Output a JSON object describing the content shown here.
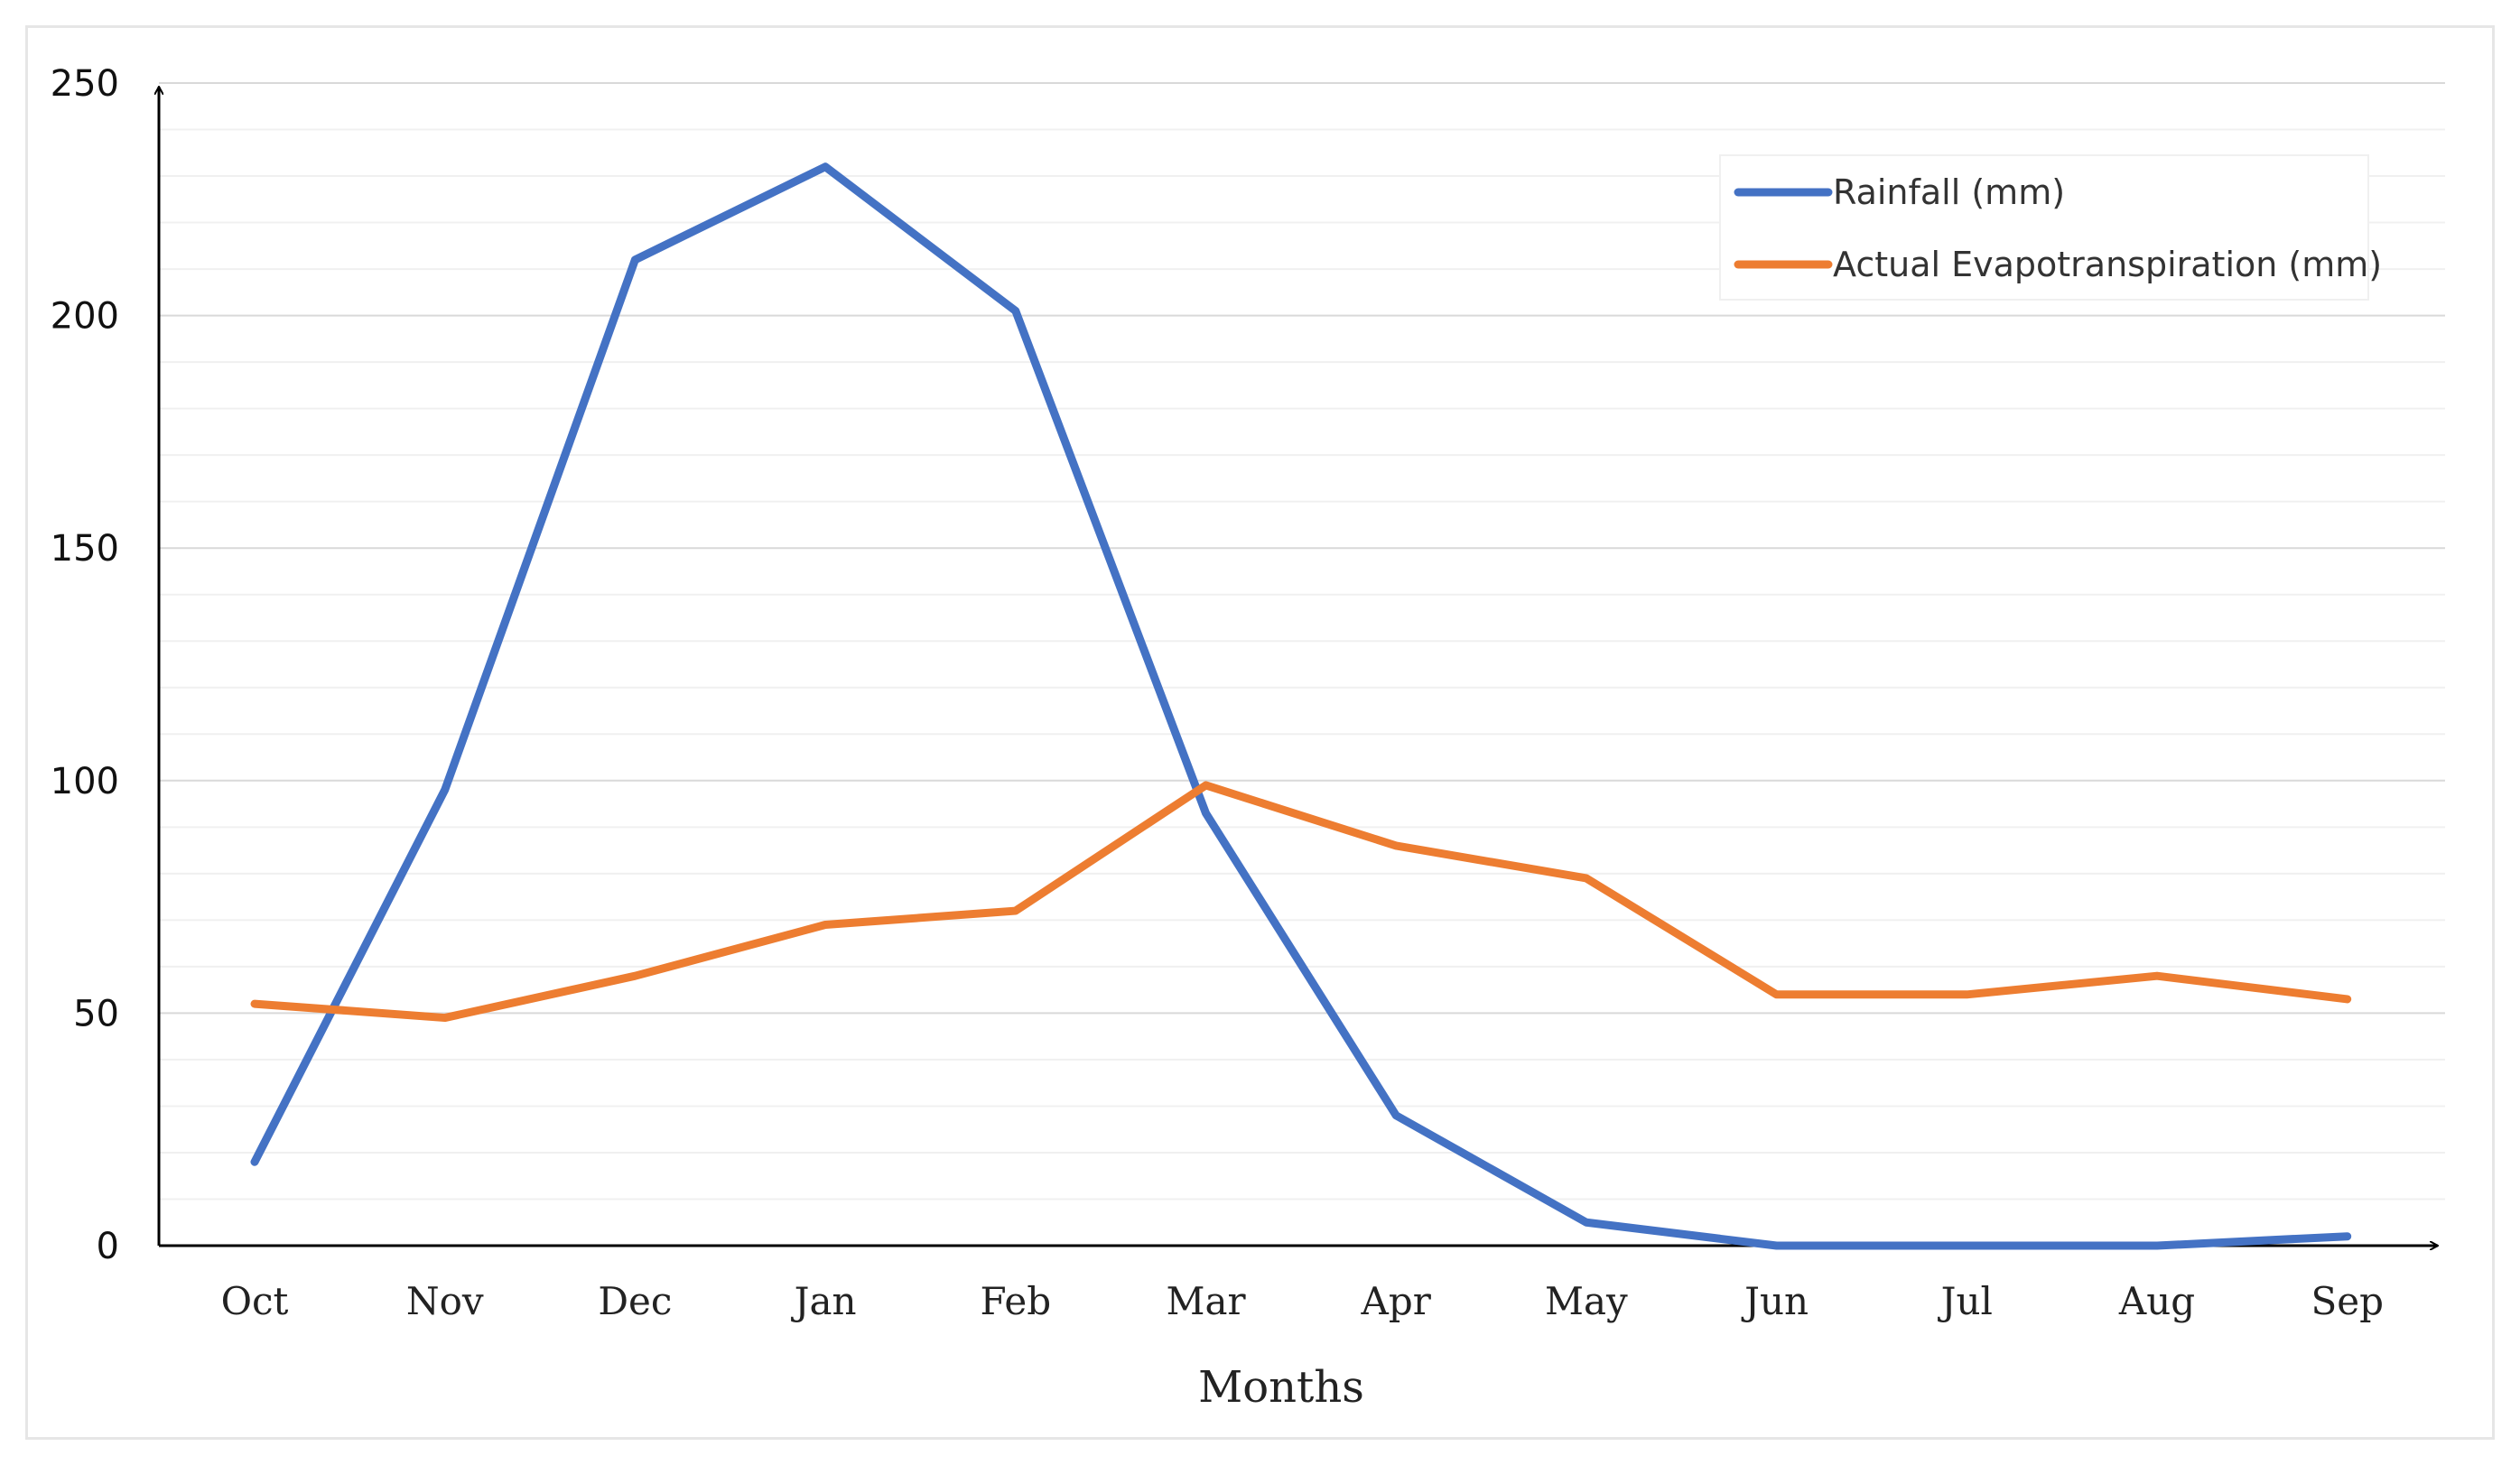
{
  "chart_data": {
    "type": "line",
    "title": "",
    "xlabel": "Months",
    "ylabel": "",
    "categories": [
      "Oct",
      "Nov",
      "Dec",
      "Jan",
      "Feb",
      "Mar",
      "Apr",
      "May",
      "Jun",
      "Jul",
      "Aug",
      "Sep"
    ],
    "ylim": [
      0,
      250
    ],
    "yticks": [
      "0",
      "50",
      "100",
      "150",
      "200",
      "250"
    ],
    "grid": true,
    "legend_position": "top-right",
    "series": [
      {
        "name": "Rainfall (mm)",
        "color": "#4472C4",
        "values": [
          18,
          98,
          212,
          232,
          201,
          93,
          28,
          5,
          0,
          0,
          0,
          2
        ]
      },
      {
        "name": "Actual Evapotranspiration (mm)",
        "color": "#ED7D31",
        "values": [
          52,
          49,
          58,
          69,
          72,
          99,
          86,
          79,
          54,
          54,
          58,
          53
        ]
      }
    ]
  }
}
